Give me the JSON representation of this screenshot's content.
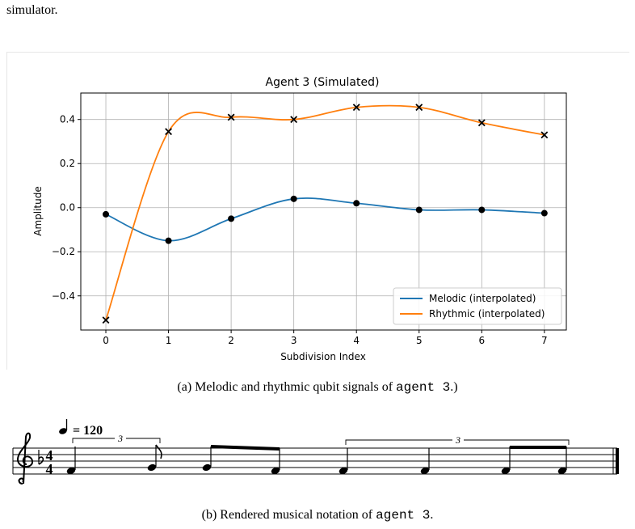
{
  "intro": {
    "text": "simulator."
  },
  "figure_a": {
    "caption_prefix": "(a)  Melodic and rhythmic qubit signals of ",
    "caption_code": "agent 3",
    "caption_suffix": ".)"
  },
  "figure_b": {
    "caption_prefix": "(b)  Rendered musical notation of ",
    "caption_code": "agent 3",
    "caption_suffix": ".",
    "tempo_text": "= 120",
    "tuplet_label": "3",
    "time_signature": {
      "top": "4",
      "bottom": "4"
    }
  },
  "chart_data": {
    "type": "line",
    "title": "Agent 3 (Simulated)",
    "xlabel": "Subdivision Index",
    "ylabel": "Amplitude",
    "xlim": [
      -0.4,
      7.35
    ],
    "ylim": [
      -0.555,
      0.52
    ],
    "x": [
      0,
      1,
      2,
      3,
      4,
      5,
      6,
      7
    ],
    "xticks": [
      "0",
      "1",
      "2",
      "3",
      "4",
      "5",
      "6",
      "7"
    ],
    "yticks": [
      -0.4,
      -0.2,
      0.0,
      0.2,
      0.4
    ],
    "ytick_labels": [
      "−0.4",
      "−0.2",
      "0.0",
      "0.2",
      "0.4"
    ],
    "grid": true,
    "legend_position": "lower-right",
    "series": [
      {
        "name": "Melodic (interpolated)",
        "color": "#1f77b4",
        "marker": "circle",
        "values": [
          -0.03,
          -0.15,
          -0.05,
          0.04,
          0.02,
          -0.01,
          -0.01,
          -0.025
        ]
      },
      {
        "name": "Rhythmic (interpolated)",
        "color": "#ff7f0e",
        "marker": "x",
        "values": [
          -0.51,
          0.345,
          0.41,
          0.4,
          0.455,
          0.455,
          0.385,
          0.33
        ]
      }
    ]
  }
}
